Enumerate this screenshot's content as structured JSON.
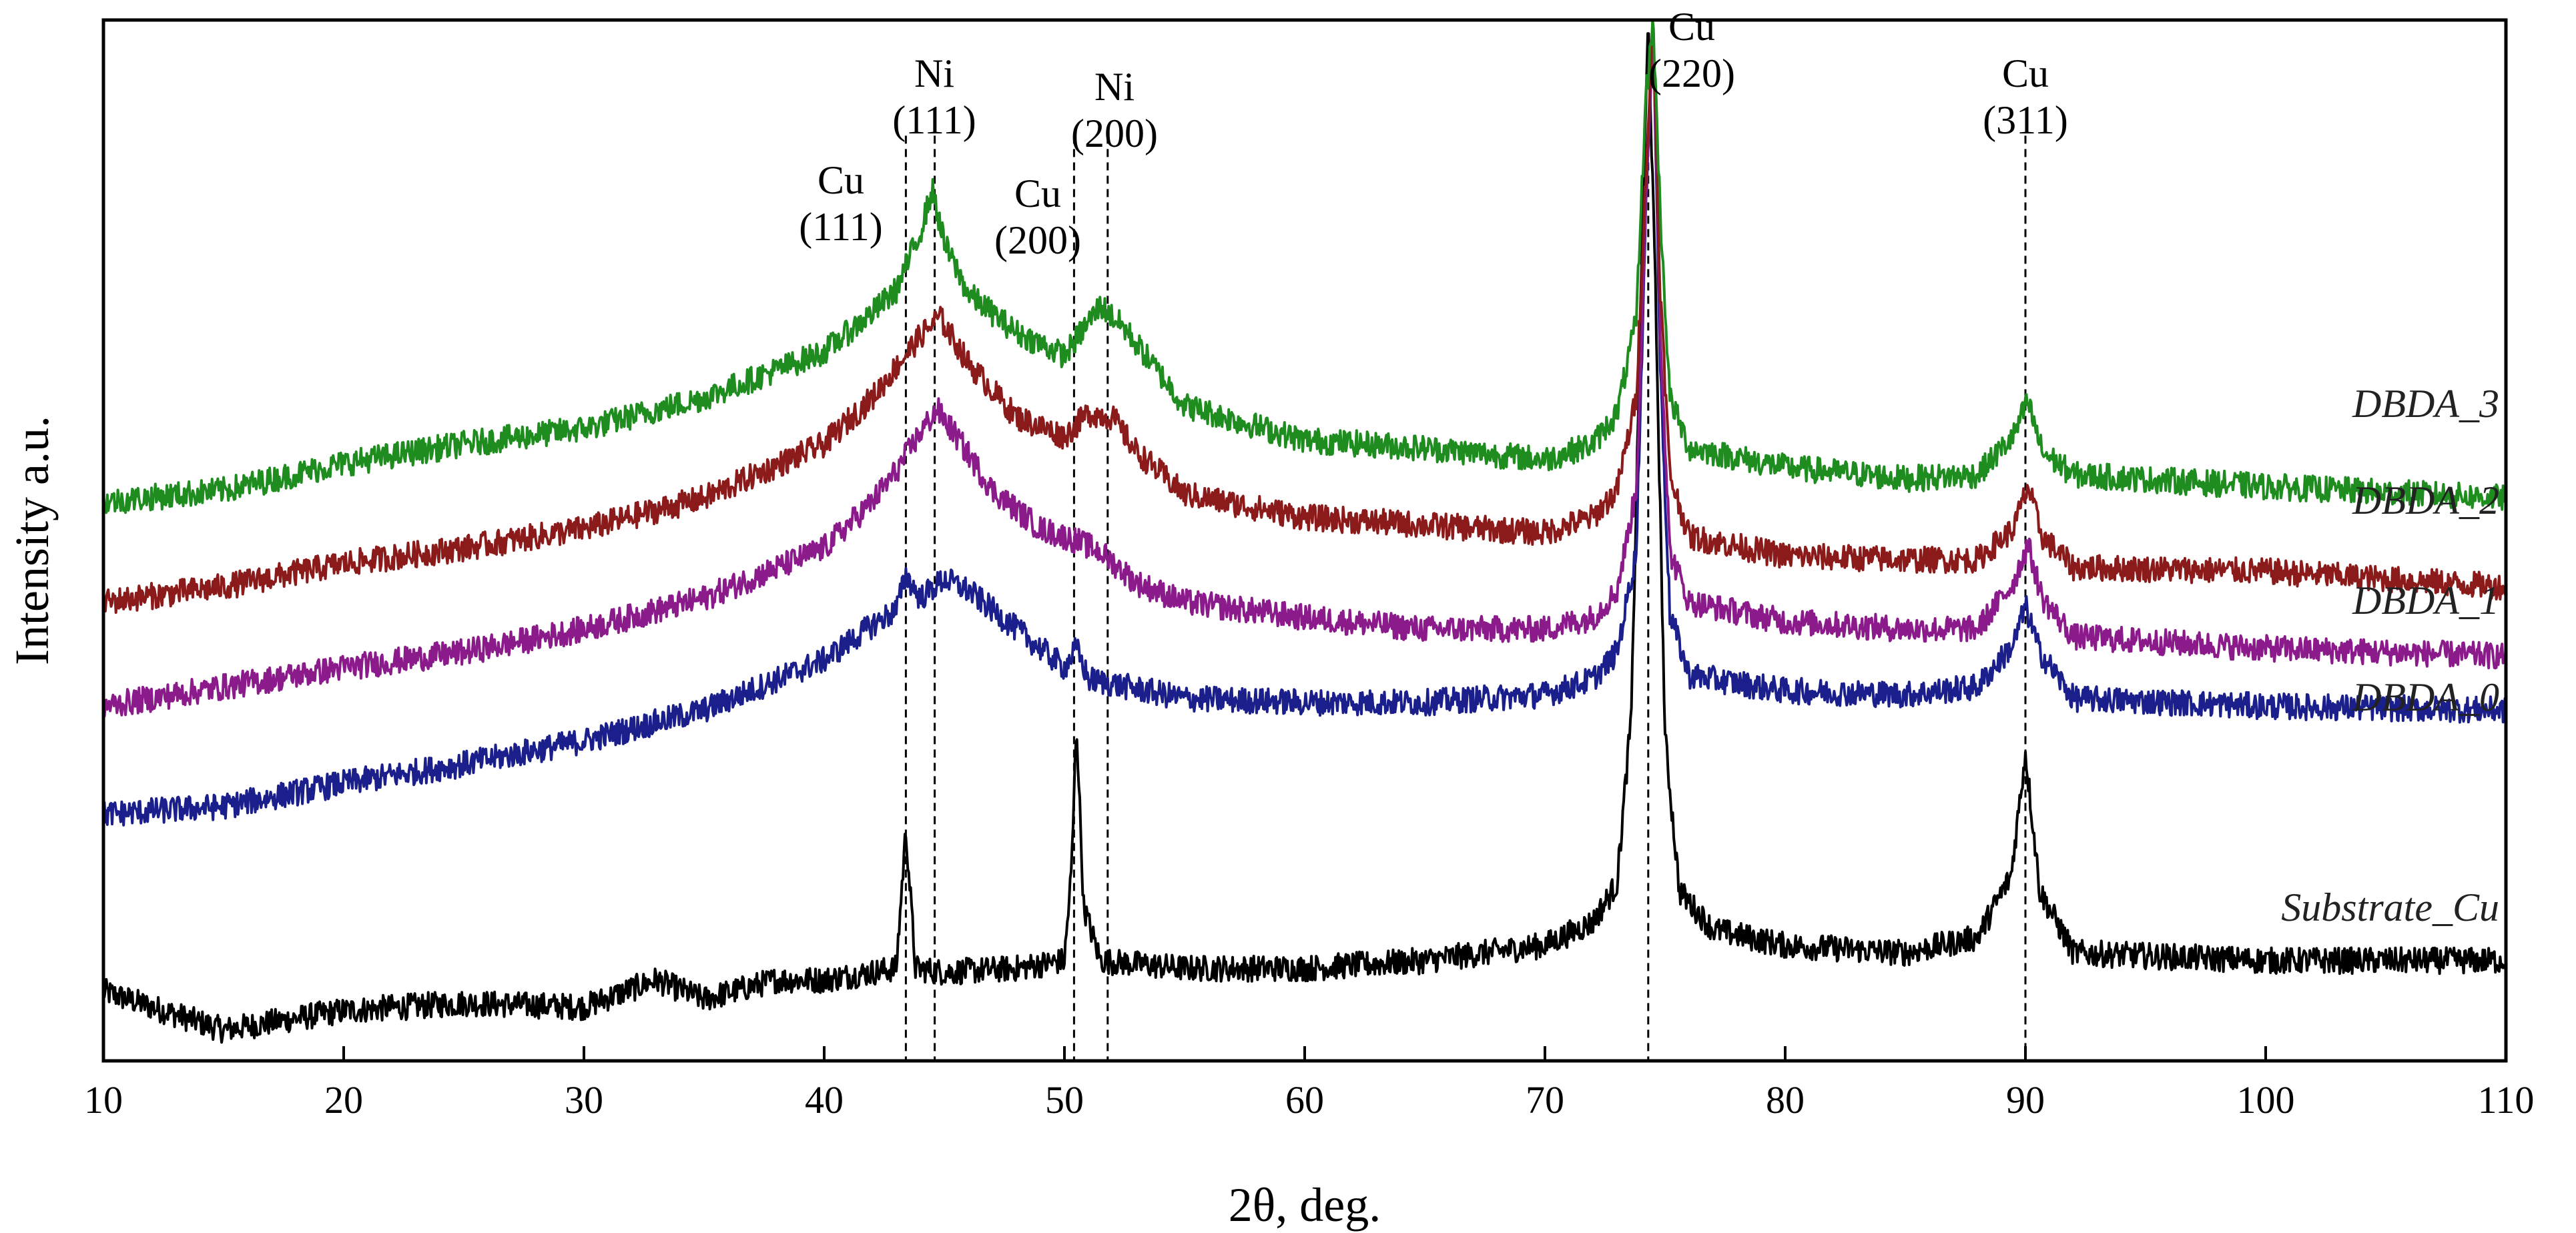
{
  "chart_data": {
    "type": "line",
    "title": "",
    "xlabel": "2θ, deg.",
    "ylabel": "Intensity a.u.",
    "xlim": [
      10,
      110
    ],
    "ylim": [
      0,
      13.5
    ],
    "x_ticks": [
      10,
      20,
      30,
      40,
      50,
      60,
      70,
      80,
      90,
      100,
      110
    ],
    "x_tick_labels": [
      "10",
      "20",
      "30",
      "40",
      "50",
      "60",
      "70",
      "80",
      "90",
      "100",
      "110"
    ],
    "y_ticks_shown": false,
    "grid": false,
    "series": [
      {
        "name": "Substrate_Cu",
        "color": "#000000",
        "points": [
          [
            10,
            0.9
          ],
          [
            15,
            0.4
          ],
          [
            20,
            0.65
          ],
          [
            25,
            0.75
          ],
          [
            30,
            0.7
          ],
          [
            33,
            1.05
          ],
          [
            35,
            0.8
          ],
          [
            38,
            1.05
          ],
          [
            40,
            1.05
          ],
          [
            42,
            1.15
          ],
          [
            43,
            1.2
          ],
          [
            43.4,
            3.0
          ],
          [
            43.8,
            1.2
          ],
          [
            45,
            1.15
          ],
          [
            48,
            1.2
          ],
          [
            50,
            1.3
          ],
          [
            50.3,
            2.5
          ],
          [
            50.5,
            4.4
          ],
          [
            50.8,
            2.0
          ],
          [
            51.5,
            1.3
          ],
          [
            55,
            1.2
          ],
          [
            60,
            1.2
          ],
          [
            65,
            1.3
          ],
          [
            70,
            1.5
          ],
          [
            72,
            1.8
          ],
          [
            73,
            2.3
          ],
          [
            73.6,
            4.5
          ],
          [
            74.0,
            10.0
          ],
          [
            74.3,
            13.5
          ],
          [
            74.6,
            10.0
          ],
          [
            75.0,
            4.2
          ],
          [
            75.6,
            2.2
          ],
          [
            77,
            1.7
          ],
          [
            80,
            1.5
          ],
          [
            85,
            1.4
          ],
          [
            88,
            1.6
          ],
          [
            89.4,
            2.4
          ],
          [
            90.0,
            4.0
          ],
          [
            90.6,
            2.2
          ],
          [
            92,
            1.4
          ],
          [
            100,
            1.3
          ],
          [
            110,
            1.3
          ]
        ]
      },
      {
        "name": "DBDA_0",
        "color": "#1a1f8c",
        "points": [
          [
            10,
            3.2
          ],
          [
            15,
            3.3
          ],
          [
            20,
            3.6
          ],
          [
            25,
            3.85
          ],
          [
            30,
            4.15
          ],
          [
            35,
            4.55
          ],
          [
            40,
            5.2
          ],
          [
            42,
            5.65
          ],
          [
            43,
            5.85
          ],
          [
            43.4,
            6.3
          ],
          [
            44,
            6.0
          ],
          [
            45,
            6.25
          ],
          [
            46,
            6.1
          ],
          [
            48,
            5.6
          ],
          [
            50,
            5.1
          ],
          [
            50.5,
            5.35
          ],
          [
            51,
            4.95
          ],
          [
            55,
            4.7
          ],
          [
            60,
            4.65
          ],
          [
            65,
            4.65
          ],
          [
            70,
            4.75
          ],
          [
            72,
            4.95
          ],
          [
            73,
            5.3
          ],
          [
            73.8,
            6.6
          ],
          [
            74.2,
            11.0
          ],
          [
            74.5,
            13.5
          ],
          [
            74.8,
            9.0
          ],
          [
            75.2,
            5.8
          ],
          [
            76,
            5.0
          ],
          [
            80,
            4.8
          ],
          [
            85,
            4.75
          ],
          [
            88,
            4.85
          ],
          [
            89.5,
            5.4
          ],
          [
            90.0,
            5.9
          ],
          [
            90.6,
            5.3
          ],
          [
            92,
            4.7
          ],
          [
            100,
            4.6
          ],
          [
            110,
            4.55
          ]
        ]
      },
      {
        "name": "DBDA_1",
        "color": "#8b1a8b",
        "points": [
          [
            10,
            4.6
          ],
          [
            15,
            4.85
          ],
          [
            20,
            5.1
          ],
          [
            25,
            5.3
          ],
          [
            30,
            5.6
          ],
          [
            35,
            6.0
          ],
          [
            40,
            6.65
          ],
          [
            42,
            7.25
          ],
          [
            43,
            7.65
          ],
          [
            44,
            8.15
          ],
          [
            44.7,
            8.45
          ],
          [
            45.5,
            8.1
          ],
          [
            47,
            7.4
          ],
          [
            49,
            6.9
          ],
          [
            50.5,
            6.75
          ],
          [
            51.5,
            6.6
          ],
          [
            53,
            6.2
          ],
          [
            55,
            5.95
          ],
          [
            60,
            5.75
          ],
          [
            65,
            5.6
          ],
          [
            70,
            5.6
          ],
          [
            72,
            5.75
          ],
          [
            73,
            6.1
          ],
          [
            73.8,
            7.4
          ],
          [
            74.2,
            11.0
          ],
          [
            74.5,
            13.5
          ],
          [
            74.8,
            9.5
          ],
          [
            75.2,
            6.6
          ],
          [
            76,
            5.95
          ],
          [
            80,
            5.7
          ],
          [
            85,
            5.6
          ],
          [
            88,
            5.6
          ],
          [
            89.5,
            6.2
          ],
          [
            90.1,
            6.7
          ],
          [
            90.7,
            6.0
          ],
          [
            92,
            5.5
          ],
          [
            100,
            5.35
          ],
          [
            110,
            5.25
          ]
        ]
      },
      {
        "name": "DBDA_2",
        "color": "#8b1a1a",
        "points": [
          [
            10,
            5.95
          ],
          [
            15,
            6.15
          ],
          [
            20,
            6.45
          ],
          [
            25,
            6.65
          ],
          [
            30,
            6.9
          ],
          [
            35,
            7.3
          ],
          [
            40,
            8.0
          ],
          [
            42,
            8.6
          ],
          [
            43,
            9.0
          ],
          [
            44,
            9.4
          ],
          [
            44.8,
            9.65
          ],
          [
            46,
            9.05
          ],
          [
            48,
            8.35
          ],
          [
            50,
            8.1
          ],
          [
            51,
            8.4
          ],
          [
            52,
            8.35
          ],
          [
            53,
            7.9
          ],
          [
            55,
            7.35
          ],
          [
            60,
            7.05
          ],
          [
            65,
            6.95
          ],
          [
            70,
            6.85
          ],
          [
            72,
            7.05
          ],
          [
            73,
            7.4
          ],
          [
            73.8,
            8.6
          ],
          [
            74.2,
            11.5
          ],
          [
            74.5,
            13.5
          ],
          [
            74.8,
            10.0
          ],
          [
            75.2,
            7.6
          ],
          [
            76,
            6.8
          ],
          [
            80,
            6.55
          ],
          [
            85,
            6.5
          ],
          [
            88,
            6.5
          ],
          [
            89.5,
            6.9
          ],
          [
            90.1,
            7.45
          ],
          [
            90.7,
            6.8
          ],
          [
            92,
            6.4
          ],
          [
            100,
            6.35
          ],
          [
            110,
            6.15
          ]
        ]
      },
      {
        "name": "DBDA_3",
        "color": "#1f8c1f",
        "points": [
          [
            10,
            7.25
          ],
          [
            15,
            7.4
          ],
          [
            20,
            7.75
          ],
          [
            25,
            8.0
          ],
          [
            30,
            8.2
          ],
          [
            35,
            8.6
          ],
          [
            40,
            9.2
          ],
          [
            42,
            9.7
          ],
          [
            43,
            10.0
          ],
          [
            44,
            10.75
          ],
          [
            44.5,
            11.3
          ],
          [
            45,
            10.6
          ],
          [
            46,
            9.95
          ],
          [
            48,
            9.45
          ],
          [
            50,
            9.15
          ],
          [
            51.5,
            9.8
          ],
          [
            52.5,
            9.5
          ],
          [
            55,
            8.5
          ],
          [
            60,
            8.05
          ],
          [
            65,
            7.95
          ],
          [
            70,
            7.8
          ],
          [
            72,
            8.0
          ],
          [
            73,
            8.4
          ],
          [
            73.8,
            9.6
          ],
          [
            74.2,
            12.5
          ],
          [
            74.5,
            13.5
          ],
          [
            74.8,
            11.0
          ],
          [
            75.2,
            8.6
          ],
          [
            76,
            7.95
          ],
          [
            80,
            7.7
          ],
          [
            85,
            7.55
          ],
          [
            88,
            7.6
          ],
          [
            89.5,
            8.1
          ],
          [
            90.1,
            8.55
          ],
          [
            90.7,
            7.9
          ],
          [
            92,
            7.6
          ],
          [
            100,
            7.45
          ],
          [
            110,
            7.3
          ]
        ]
      }
    ],
    "series_labels": [
      {
        "series": "DBDA_3",
        "text": "DBDA_3"
      },
      {
        "series": "DBDA_2",
        "text": "DBDA_2"
      },
      {
        "series": "DBDA_1",
        "text": "DBDA_1"
      },
      {
        "series": "DBDA_0",
        "text": "DBDA_0"
      },
      {
        "series": "Substrate_Cu",
        "text": "Substrate_Cu"
      }
    ],
    "reference_lines": [
      {
        "x": 43.4,
        "element": "Cu",
        "plane": "(111)"
      },
      {
        "x": 44.6,
        "element": "Ni",
        "plane": "(111)"
      },
      {
        "x": 50.4,
        "element": "Cu",
        "plane": "(200)"
      },
      {
        "x": 51.8,
        "element": "Ni",
        "plane": "(200)"
      },
      {
        "x": 74.3,
        "element": "Cu",
        "plane": "(220)"
      },
      {
        "x": 90.0,
        "element": "Cu",
        "plane": "(311)"
      }
    ]
  }
}
